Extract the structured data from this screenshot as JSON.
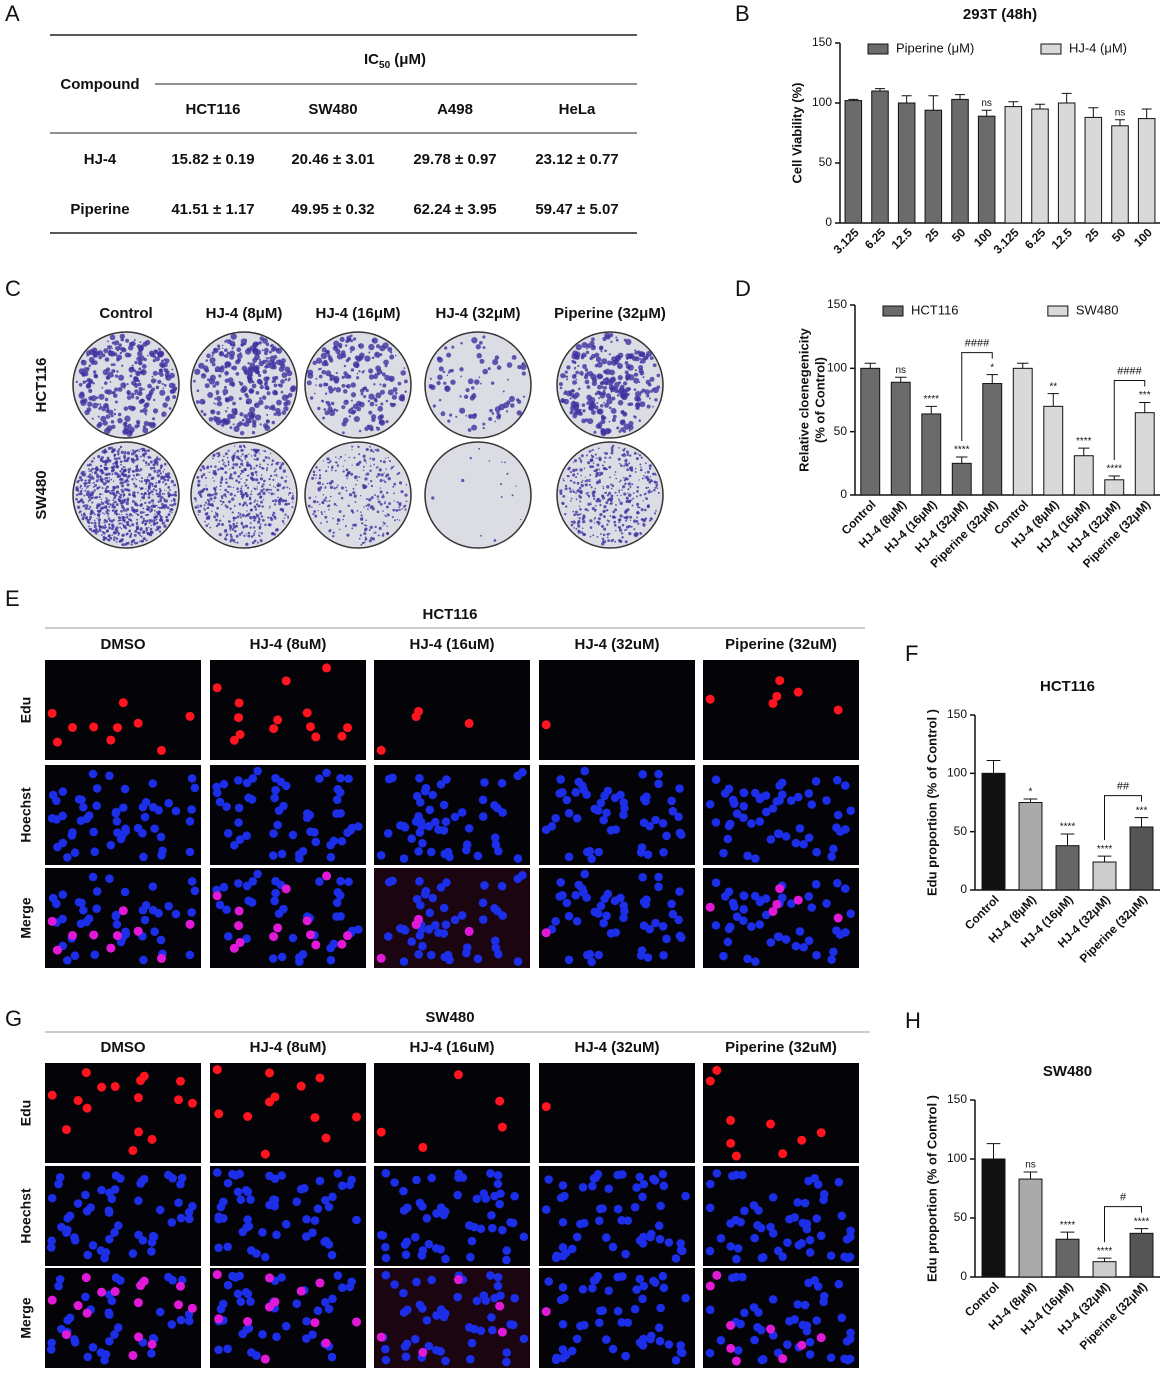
{
  "panel_labels": [
    "A",
    "B",
    "C",
    "D",
    "E",
    "F",
    "G",
    "H"
  ],
  "table": {
    "compound_header": "Compound",
    "ic50": {
      "main": "IC",
      "sub": "50",
      "unit": " (μM)"
    },
    "columns": [
      "HCT116",
      "SW480",
      "A498",
      "HeLa"
    ],
    "rows": [
      [
        "HJ-4",
        "15.82 ± 0.19",
        "20.46 ± 3.01",
        "29.78 ± 0.97",
        "23.12 ± 0.77"
      ],
      [
        "Piperine",
        "41.51 ± 1.17",
        "49.95 ± 0.32",
        "62.24 ± 3.95",
        "59.47 ± 5.07"
      ]
    ]
  },
  "colony_panel": {
    "columns": [
      "Control",
      "HJ-4 (8μM)",
      "HJ-4 (16μM)",
      "HJ-4 (32μM)",
      "Piperine (32μM)"
    ],
    "rows": [
      "HCT116",
      "SW480"
    ]
  },
  "edu_panels": [
    {
      "title": "HCT116",
      "columns": [
        "DMSO",
        "HJ-4 (8uM)",
        "HJ-4 (16uM)",
        "HJ-4 (32uM)",
        "Piperine (32uM)"
      ],
      "rows": [
        "Edu",
        "Hoechst",
        "Merge"
      ]
    },
    {
      "title": "SW480",
      "columns": [
        "DMSO",
        "HJ-4 (8uM)",
        "HJ-4 (16uM)",
        "HJ-4 (32uM)",
        "Piperine (32uM)"
      ],
      "rows": [
        "Edu",
        "Hoechst",
        "Merge"
      ]
    }
  ],
  "chart_data": [
    {
      "type": "bar",
      "title": "293T (48h)",
      "ylabel": [
        "Cell Viability (%)"
      ],
      "categories": [
        "3.125",
        "6.25",
        "12.5",
        "25",
        "50",
        "100",
        "3.125",
        "6.25",
        "12.5",
        "25",
        "50",
        "100"
      ],
      "series": [
        {
          "name": "Piperine (μM)",
          "color": "#6b6b6b",
          "values": [
            102,
            110,
            100,
            94,
            103,
            89,
            null,
            null,
            null,
            null,
            null,
            null
          ],
          "errors": [
            1,
            2,
            6,
            12,
            4,
            5,
            null,
            null,
            null,
            null,
            null,
            null
          ],
          "significance": [
            null,
            null,
            null,
            null,
            null,
            "ns",
            null,
            null,
            null,
            null,
            null,
            null
          ]
        },
        {
          "name": "HJ-4 (μM)",
          "color": "#d9d9d9",
          "values": [
            null,
            null,
            null,
            null,
            null,
            null,
            97,
            95,
            100,
            88,
            81,
            87
          ],
          "errors": [
            null,
            null,
            null,
            null,
            null,
            null,
            4,
            4,
            8,
            8,
            5,
            8
          ],
          "significance": [
            null,
            null,
            null,
            null,
            null,
            null,
            null,
            null,
            null,
            null,
            "ns",
            null
          ]
        }
      ],
      "ylim": [
        0,
        150
      ],
      "yticks": [
        0,
        50,
        100,
        150
      ]
    },
    {
      "type": "bar",
      "ylabel": [
        "Relative cloenegenicity",
        "(% of Control)"
      ],
      "categories": [
        "Control",
        "HJ-4 (8μM)",
        "HJ-4 (16μM)",
        "HJ-4 (32μM)",
        "Piperine (32μM)",
        "Control",
        "HJ-4 (8μM)",
        "HJ-4 (16μM)",
        "HJ-4 (32μM)",
        "Piperine (32μM)"
      ],
      "series": [
        {
          "name": "HCT116",
          "color": "#6b6b6b",
          "values": [
            100,
            89,
            64,
            25,
            88,
            null,
            null,
            null,
            null,
            null
          ],
          "errors": [
            4,
            4,
            6,
            5,
            7,
            null,
            null,
            null,
            null,
            null
          ],
          "significance": [
            null,
            "ns",
            "****",
            "****",
            "*",
            null,
            null,
            null,
            null,
            null
          ]
        },
        {
          "name": "SW480",
          "color": "#d9d9d9",
          "values": [
            null,
            null,
            null,
            null,
            null,
            100,
            70,
            31,
            12,
            65
          ],
          "errors": [
            null,
            null,
            null,
            null,
            null,
            4,
            10,
            6,
            3,
            8
          ],
          "significance": [
            null,
            null,
            null,
            null,
            null,
            null,
            "**",
            "****",
            "****",
            "***"
          ]
        }
      ],
      "comparisons": [
        {
          "from": 3,
          "to": 4,
          "label": "####"
        },
        {
          "from": 8,
          "to": 9,
          "label": "####"
        }
      ],
      "ylim": [
        0,
        150
      ],
      "yticks": [
        0,
        50,
        100,
        150
      ]
    },
    {
      "type": "bar",
      "title": "HCT116",
      "ylabel": [
        "Edu proportion (% of Control )"
      ],
      "categories": [
        "Control",
        "HJ-4 (8μM)",
        "HJ-4 (16μM)",
        "HJ-4 (32μM)",
        "Piperine (32μM)"
      ],
      "values": [
        100,
        75,
        38,
        24,
        54
      ],
      "errors": [
        11,
        3,
        10,
        5,
        8
      ],
      "colors": [
        "#111111",
        "#aaaaaa",
        "#666666",
        "#cccccc",
        "#555555"
      ],
      "significance": [
        null,
        "*",
        "****",
        "****",
        "***"
      ],
      "comparisons": [
        {
          "from": 3,
          "to": 4,
          "label": "##"
        }
      ],
      "ylim": [
        0,
        150
      ],
      "yticks": [
        0,
        50,
        100,
        150
      ]
    },
    {
      "type": "bar",
      "title": "SW480",
      "ylabel": [
        "Edu proportion (% of Control )"
      ],
      "categories": [
        "Control",
        "HJ-4 (8μM)",
        "HJ-4 (16μM)",
        "HJ-4 (32μM)",
        "Piperine (32μM)"
      ],
      "values": [
        100,
        83,
        32,
        13,
        37
      ],
      "errors": [
        13,
        6,
        6,
        3,
        4
      ],
      "colors": [
        "#111111",
        "#aaaaaa",
        "#666666",
        "#cccccc",
        "#555555"
      ],
      "significance": [
        null,
        "ns",
        "****",
        "****",
        "****"
      ],
      "comparisons": [
        {
          "from": 3,
          "to": 4,
          "label": "#"
        }
      ],
      "ylim": [
        0,
        150
      ],
      "yticks": [
        0,
        50,
        100,
        150
      ]
    }
  ]
}
